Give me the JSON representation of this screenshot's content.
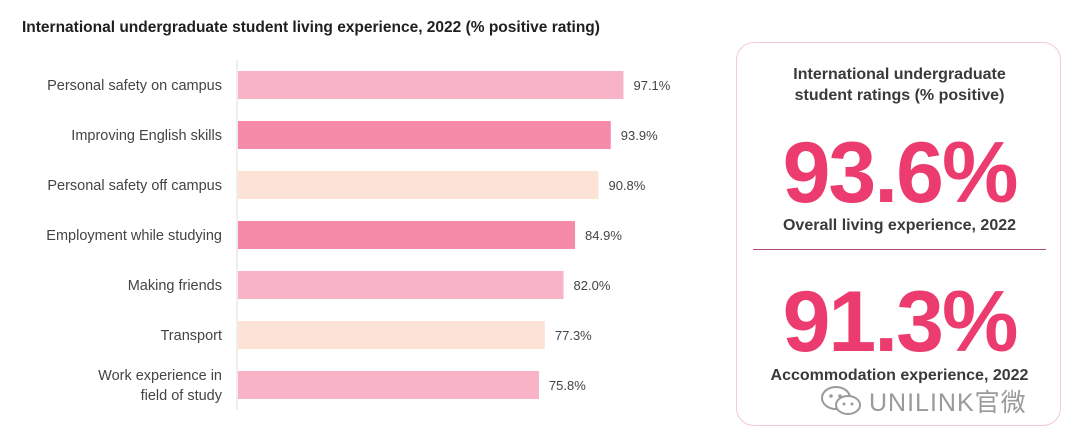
{
  "chart_data": {
    "type": "bar",
    "orientation": "horizontal",
    "title": "International undergraduate student living experience, 2022 (% positive rating)",
    "categories": [
      [
        "Personal safety on campus"
      ],
      [
        "Improving English skills"
      ],
      [
        "Personal safety off campus"
      ],
      [
        "Employment while studying"
      ],
      [
        "Making friends"
      ],
      [
        "Transport"
      ],
      [
        "Work experience in",
        "field of study"
      ]
    ],
    "values": [
      97.1,
      93.9,
      90.8,
      84.9,
      82.0,
      77.3,
      75.8
    ],
    "value_labels": [
      "97.1%",
      "93.9%",
      "90.8%",
      "84.9%",
      "82.0%",
      "77.3%",
      "75.8%"
    ],
    "bar_colors": [
      "#f8b3c7",
      "#f58ba9",
      "#fde3d6",
      "#f58ba9",
      "#f8b3c7",
      "#fde3d6",
      "#f8b3c7"
    ],
    "xlim": [
      0,
      100
    ],
    "xlabel": "",
    "ylabel": "",
    "grid": false
  },
  "card": {
    "heading_line1": "International undergraduate",
    "heading_line2": "student ratings (% positive)",
    "stat1_value": "93.6%",
    "stat1_label": "Overall living experience, 2022",
    "stat2_value": "91.3%",
    "stat2_label": "Accommodation experience, 2022"
  },
  "watermark": {
    "text": "UNILINK官微"
  },
  "colors": {
    "accent": "#ec3b6e",
    "axis": "#dddddd",
    "label": "#444444"
  }
}
